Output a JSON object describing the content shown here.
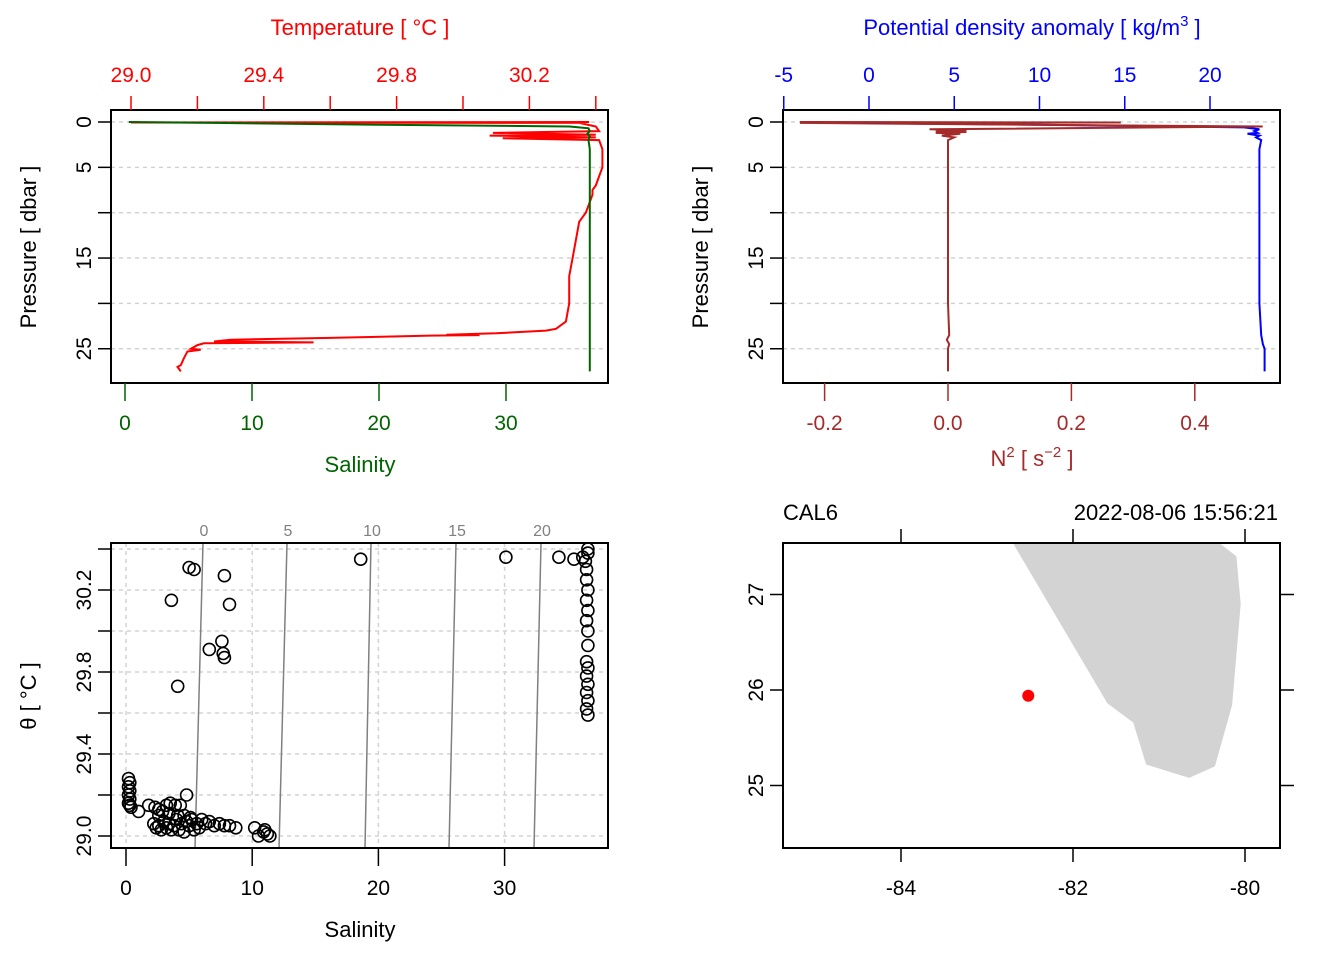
{
  "chart_data": [
    {
      "type": "line",
      "panel": "top-left",
      "title": "",
      "top_axis_label": "Temperature [ °C ]",
      "top_axis_color": "#ff0000",
      "top_axis_ticks": [
        29.0,
        29.2,
        29.4,
        29.6,
        29.8,
        30.0,
        30.2,
        30.4
      ],
      "top_axis_tick_labels": [
        "29.0",
        "29.4",
        "29.8",
        "30.2"
      ],
      "xlabel": "Salinity",
      "xlabel_color": "#006400",
      "x_ticks": [
        0,
        10,
        20,
        30
      ],
      "x_tick_labels": [
        "0",
        "10",
        "20",
        "30"
      ],
      "ylabel": "Pressure [ dbar ]",
      "y_ticks": [
        0,
        5,
        10,
        15,
        20,
        25
      ],
      "y_tick_labels": [
        "0",
        "5",
        "",
        "15",
        "",
        "25"
      ],
      "ylim": [
        28,
        -0.5
      ],
      "grid": true,
      "series": [
        {
          "name": "Temperature",
          "color": "#ff0000",
          "axis": "top",
          "points": [
            [
              30.38,
              0.0
            ],
            [
              29.0,
              0.05
            ],
            [
              30.35,
              0.1
            ],
            [
              30.4,
              0.5
            ],
            [
              30.41,
              1.0
            ],
            [
              30.09,
              1.2
            ],
            [
              30.4,
              1.4
            ],
            [
              30.08,
              1.5
            ],
            [
              30.4,
              1.7
            ],
            [
              30.12,
              1.8
            ],
            [
              30.41,
              2.0
            ],
            [
              30.42,
              3.0
            ],
            [
              30.42,
              5.0
            ],
            [
              30.41,
              6.0
            ],
            [
              30.4,
              7.0
            ],
            [
              30.39,
              7.5
            ],
            [
              30.39,
              8.0
            ],
            [
              30.38,
              9.0
            ],
            [
              30.37,
              10.0
            ],
            [
              30.35,
              11.0
            ],
            [
              30.34,
              13.0
            ],
            [
              30.33,
              15.0
            ],
            [
              30.32,
              17.0
            ],
            [
              30.32,
              20.0
            ],
            [
              30.31,
              22.0
            ],
            [
              30.28,
              22.8
            ],
            [
              30.25,
              23.0
            ],
            [
              30.1,
              23.3
            ],
            [
              30.0,
              23.4
            ],
            [
              29.95,
              23.45
            ],
            [
              30.05,
              23.5
            ],
            [
              29.9,
              23.55
            ],
            [
              29.6,
              23.8
            ],
            [
              29.3,
              24.0
            ],
            [
              29.25,
              24.2
            ],
            [
              29.3,
              24.2
            ],
            [
              29.55,
              24.3
            ],
            [
              29.22,
              24.4
            ],
            [
              29.2,
              24.6
            ],
            [
              29.18,
              25.0
            ],
            [
              29.21,
              25.1
            ],
            [
              29.17,
              25.3
            ],
            [
              29.16,
              26.0
            ],
            [
              29.15,
              26.8
            ],
            [
              29.14,
              27.0
            ],
            [
              29.15,
              27.5
            ]
          ]
        },
        {
          "name": "Salinity",
          "color": "#006400",
          "axis": "bottom",
          "points": [
            [
              0.3,
              0.0
            ],
            [
              7.0,
              0.1
            ],
            [
              20.0,
              0.3
            ],
            [
              35.0,
              0.5
            ],
            [
              36.5,
              0.7
            ],
            [
              36.6,
              1.0
            ],
            [
              36.4,
              1.3
            ],
            [
              36.6,
              1.6
            ],
            [
              36.5,
              2.0
            ],
            [
              36.6,
              3.0
            ],
            [
              36.6,
              5.0
            ],
            [
              36.6,
              10.0
            ],
            [
              36.6,
              15.0
            ],
            [
              36.6,
              20.0
            ],
            [
              36.6,
              25.0
            ],
            [
              36.6,
              27.5
            ]
          ]
        }
      ]
    },
    {
      "type": "line",
      "panel": "top-right",
      "top_axis_label": "Potential density anomaly [ kg/m3 ]",
      "top_axis_label_base": "Potential density anomaly [ kg/m",
      "top_axis_label_sup": "3",
      "top_axis_label_end": " ]",
      "top_axis_color": "#0000ff",
      "top_axis_ticks": [
        -5,
        0,
        5,
        10,
        15,
        20
      ],
      "top_axis_tick_labels": [
        "-5",
        "0",
        "5",
        "10",
        "15",
        "20"
      ],
      "xlabel": "N2 [ s-2 ]",
      "xlabel_base": "N",
      "xlabel_sup": "2",
      "xlabel_mid": " [ s",
      "xlabel_sup2": "−2",
      "xlabel_end": " ]",
      "xlabel_color": "#a52a2a",
      "x_ticks": [
        -0.2,
        0.0,
        0.2,
        0.4
      ],
      "x_tick_labels": [
        "-0.2",
        "0.0",
        "0.2",
        "0.4"
      ],
      "ylabel": "Pressure [ dbar ]",
      "y_ticks": [
        0,
        5,
        10,
        15,
        20,
        25
      ],
      "y_tick_labels": [
        "0",
        "5",
        "",
        "15",
        "",
        "25"
      ],
      "ylim": [
        28,
        -0.5
      ],
      "grid": true,
      "series": [
        {
          "name": "Potential density anomaly",
          "color": "#0000ff",
          "axis": "top",
          "points": [
            [
              -4.0,
              0.0
            ],
            [
              1.5,
              0.15
            ],
            [
              10.0,
              0.3
            ],
            [
              22.0,
              0.6
            ],
            [
              22.9,
              0.8
            ],
            [
              22.6,
              1.0
            ],
            [
              22.8,
              1.2
            ],
            [
              22.2,
              1.3
            ],
            [
              22.9,
              1.5
            ],
            [
              22.7,
              1.7
            ],
            [
              23.0,
              2.0
            ],
            [
              22.9,
              3.0
            ],
            [
              22.9,
              5.0
            ],
            [
              22.9,
              10.0
            ],
            [
              22.9,
              15.0
            ],
            [
              22.9,
              20.0
            ],
            [
              23.0,
              23.5
            ],
            [
              23.1,
              24.5
            ],
            [
              23.2,
              25.0
            ],
            [
              23.2,
              27.5
            ]
          ]
        },
        {
          "name": "N2",
          "color": "#a52a2a",
          "axis": "bottom",
          "points": [
            [
              -0.24,
              0.0
            ],
            [
              0.28,
              0.05
            ],
            [
              -0.24,
              0.1
            ],
            [
              0.51,
              0.5
            ],
            [
              -0.03,
              0.8
            ],
            [
              0.03,
              0.9
            ],
            [
              -0.02,
              1.0
            ],
            [
              0.03,
              1.1
            ],
            [
              -0.02,
              1.2
            ],
            [
              0.02,
              1.3
            ],
            [
              -0.01,
              1.5
            ],
            [
              0.01,
              1.7
            ],
            [
              0.0,
              2.0
            ],
            [
              0.0,
              5.0
            ],
            [
              0.0,
              10.0
            ],
            [
              0.0,
              20.0
            ],
            [
              0.002,
              23.5
            ],
            [
              -0.002,
              24.0
            ],
            [
              0.002,
              24.5
            ],
            [
              0.0,
              25.0
            ],
            [
              0.0,
              27.5
            ]
          ]
        }
      ]
    },
    {
      "type": "scatter",
      "panel": "bottom-left",
      "xlabel": "Salinity",
      "ylabel": "θ [ °C ]",
      "x_ticks": [
        0,
        10,
        20,
        30
      ],
      "x_tick_labels": [
        "0",
        "10",
        "20",
        "30"
      ],
      "y_ticks": [
        29.0,
        29.2,
        29.4,
        29.6,
        29.8,
        30.0,
        30.2,
        30.4
      ],
      "y_tick_labels": [
        "29.0",
        "",
        "29.4",
        "",
        "29.8",
        "",
        "30.2",
        ""
      ],
      "xlim": [
        -1.1,
        38
      ],
      "ylim": [
        28.94,
        30.43
      ],
      "grid": true,
      "isopycnals": {
        "color": "#808080",
        "labels": [
          "0",
          "5",
          "10",
          "15",
          "20"
        ],
        "values": [
          0,
          5,
          10,
          15,
          20
        ]
      },
      "points": [
        [
          0.2,
          29.28
        ],
        [
          0.3,
          29.26
        ],
        [
          0.2,
          29.24
        ],
        [
          0.3,
          29.22
        ],
        [
          0.2,
          29.2
        ],
        [
          0.3,
          29.18
        ],
        [
          0.2,
          29.16
        ],
        [
          0.3,
          29.15
        ],
        [
          0.4,
          29.14
        ],
        [
          1.0,
          29.12
        ],
        [
          1.8,
          29.15
        ],
        [
          2.3,
          29.14
        ],
        [
          2.6,
          29.13
        ],
        [
          3.2,
          29.15
        ],
        [
          3.5,
          29.16
        ],
        [
          3.9,
          29.15
        ],
        [
          4.3,
          29.15
        ],
        [
          4.8,
          29.2
        ],
        [
          2.2,
          29.06
        ],
        [
          2.4,
          29.04
        ],
        [
          2.6,
          29.05
        ],
        [
          2.8,
          29.03
        ],
        [
          3.0,
          29.07
        ],
        [
          3.2,
          29.04
        ],
        [
          3.4,
          29.06
        ],
        [
          3.6,
          29.03
        ],
        [
          3.8,
          29.05
        ],
        [
          4.0,
          29.08
        ],
        [
          4.2,
          29.03
        ],
        [
          4.4,
          29.06
        ],
        [
          4.6,
          29.02
        ],
        [
          4.8,
          29.07
        ],
        [
          5.0,
          29.05
        ],
        [
          5.2,
          29.08
        ],
        [
          5.4,
          29.03
        ],
        [
          5.6,
          29.06
        ],
        [
          5.8,
          29.04
        ],
        [
          6.0,
          29.08
        ],
        [
          6.3,
          29.06
        ],
        [
          6.6,
          29.07
        ],
        [
          7.0,
          29.05
        ],
        [
          7.4,
          29.06
        ],
        [
          7.8,
          29.05
        ],
        [
          8.2,
          29.05
        ],
        [
          8.7,
          29.04
        ],
        [
          10.2,
          29.04
        ],
        [
          10.5,
          29.0
        ],
        [
          10.9,
          29.02
        ],
        [
          11.2,
          29.01
        ],
        [
          11.4,
          29.0
        ],
        [
          11.0,
          29.03
        ],
        [
          2.6,
          29.1
        ],
        [
          2.9,
          29.12
        ],
        [
          3.4,
          29.11
        ],
        [
          4.1,
          29.1
        ],
        [
          4.6,
          29.1
        ],
        [
          5.1,
          29.09
        ],
        [
          3.6,
          30.15
        ],
        [
          4.1,
          29.73
        ],
        [
          5.0,
          30.31
        ],
        [
          5.4,
          30.3
        ],
        [
          6.6,
          29.91
        ],
        [
          7.6,
          29.95
        ],
        [
          7.7,
          29.89
        ],
        [
          7.8,
          29.87
        ],
        [
          7.8,
          30.27
        ],
        [
          8.2,
          30.13
        ],
        [
          18.6,
          30.35
        ],
        [
          30.1,
          30.36
        ],
        [
          34.3,
          30.36
        ],
        [
          35.5,
          30.35
        ],
        [
          36.2,
          30.36
        ],
        [
          36.4,
          30.34
        ],
        [
          36.5,
          30.3
        ],
        [
          36.5,
          30.25
        ],
        [
          36.6,
          30.2
        ],
        [
          36.5,
          30.15
        ],
        [
          36.6,
          30.1
        ],
        [
          36.5,
          30.05
        ],
        [
          36.6,
          30.0
        ],
        [
          36.6,
          29.93
        ],
        [
          36.5,
          29.85
        ],
        [
          36.6,
          29.82
        ],
        [
          36.5,
          29.78
        ],
        [
          36.6,
          29.74
        ],
        [
          36.5,
          29.7
        ],
        [
          36.6,
          29.66
        ],
        [
          36.5,
          29.62
        ],
        [
          36.6,
          29.59
        ],
        [
          36.6,
          30.38
        ],
        [
          36.6,
          30.4
        ]
      ]
    },
    {
      "type": "scatter",
      "panel": "bottom-right",
      "subtype": "map",
      "title_left": "CAL6",
      "title_right": "2022-08-06 15:56:21",
      "x_ticks": [
        -84,
        -82,
        -80
      ],
      "x_tick_labels": [
        "-84",
        "-82",
        "-80"
      ],
      "y_ticks": [
        25,
        26,
        27
      ],
      "y_tick_labels": [
        "25",
        "26",
        "27"
      ],
      "xlim": [
        -85.37,
        -79.59
      ],
      "ylim": [
        24.36,
        27.54
      ],
      "land_color": "#d3d3d3",
      "land_polygon": [
        [
          -82.7,
          27.54
        ],
        [
          -81.6,
          25.86
        ],
        [
          -81.3,
          25.66
        ],
        [
          -81.15,
          25.22
        ],
        [
          -80.65,
          25.08
        ],
        [
          -80.35,
          25.2
        ],
        [
          -80.15,
          25.84
        ],
        [
          -80.05,
          26.9
        ],
        [
          -80.1,
          27.4
        ],
        [
          -80.3,
          27.54
        ]
      ],
      "station": {
        "lon": -82.52,
        "lat": 25.94,
        "color": "#ff0000"
      }
    }
  ]
}
